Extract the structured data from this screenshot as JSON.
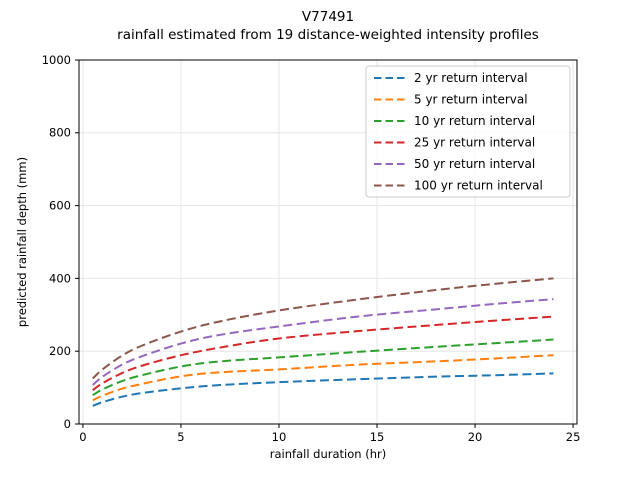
{
  "chart_data": {
    "type": "line",
    "title_line1": "V77491",
    "title_line2": "rainfall estimated from 19 distance-weighted intensity profiles",
    "xlabel": "rainfall duration (hr)",
    "ylabel": "predicted rainfall depth (mm)",
    "xlim": [
      -0.2,
      25.2
    ],
    "ylim": [
      0,
      1000
    ],
    "xticks": [
      0,
      5,
      10,
      15,
      20,
      25
    ],
    "yticks": [
      0,
      200,
      400,
      600,
      800,
      1000
    ],
    "grid": true,
    "grid_color": "#e6e6e6",
    "spine_color": "#000000",
    "legend_position": "upper right",
    "legend_border_color": "#cccccc",
    "line_style": "dashed",
    "x": [
      0.5,
      1,
      2,
      3,
      5,
      7,
      10,
      14,
      18,
      21,
      24
    ],
    "series": [
      {
        "name": "2 yr return interval",
        "color": "#1f77b4",
        "values": [
          50,
          60,
          75,
          85,
          98,
          107,
          115,
          123,
          130,
          134,
          139
        ]
      },
      {
        "name": "5 yr return interval",
        "color": "#ff7f0e",
        "values": [
          65,
          78,
          97,
          110,
          131,
          142,
          150,
          163,
          172,
          180,
          189
        ]
      },
      {
        "name": "10 yr return interval",
        "color": "#2ca02c",
        "values": [
          79,
          95,
          118,
          134,
          158,
          172,
          183,
          198,
          212,
          222,
          232
        ]
      },
      {
        "name": "25 yr return interval",
        "color": "#d62728",
        "values": [
          93,
          112,
          140,
          160,
          189,
          210,
          235,
          255,
          272,
          284,
          295
        ]
      },
      {
        "name": "50 yr return interval",
        "color": "#9467bd",
        "values": [
          107,
          130,
          163,
          186,
          221,
          245,
          268,
          295,
          315,
          330,
          343
        ]
      },
      {
        "name": "100 yr return interval",
        "color": "#8c564b",
        "values": [
          125,
          150,
          188,
          215,
          254,
          282,
          312,
          342,
          368,
          385,
          400
        ]
      }
    ]
  }
}
